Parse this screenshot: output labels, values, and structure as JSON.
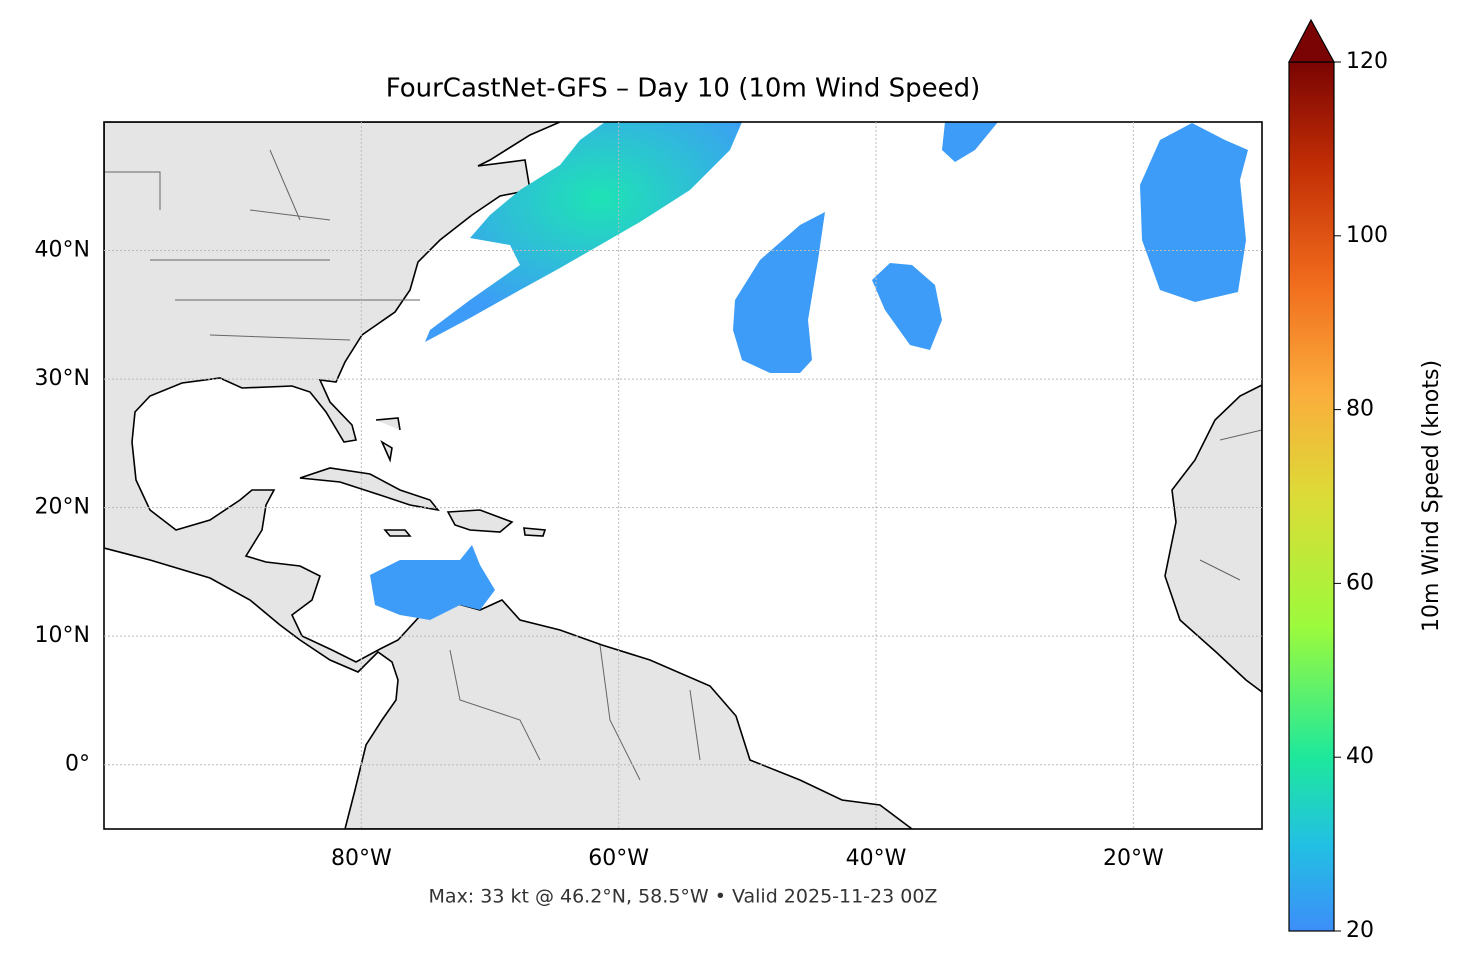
{
  "map": {
    "title": "FourCastNet-GFS – Day 10 (10m Wind Speed)",
    "note": "Max: 33 kt @ 46.2°N, 58.5°W • Valid 2025-11-23 00Z",
    "xlim": [
      -100,
      -10
    ],
    "ylim": [
      -5,
      50
    ],
    "xticks": [
      {
        "value": -80,
        "label": "80°W"
      },
      {
        "value": -60,
        "label": "60°W"
      },
      {
        "value": -40,
        "label": "40°W"
      },
      {
        "value": -20,
        "label": "20°W"
      }
    ],
    "yticks": [
      {
        "value": 0,
        "label": "0°"
      },
      {
        "value": 10,
        "label": "10°N"
      },
      {
        "value": 20,
        "label": "20°N"
      },
      {
        "value": 30,
        "label": "30°N"
      },
      {
        "value": 40,
        "label": "40°N"
      }
    ],
    "grid": true,
    "colorbar": {
      "label": "10m Wind Speed (knots)",
      "lim": [
        20,
        120
      ],
      "ticks": [
        20,
        40,
        60,
        80,
        100,
        120
      ]
    }
  }
}
